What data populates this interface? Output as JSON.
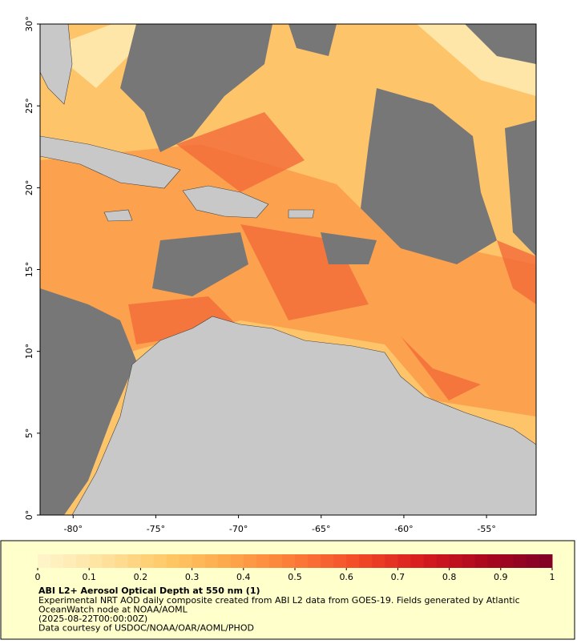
{
  "map": {
    "xlim": [
      -82,
      -52
    ],
    "ylim": [
      0,
      30
    ],
    "xticks": [
      {
        "value": -80,
        "label": "-80°"
      },
      {
        "value": -75,
        "label": "-75°"
      },
      {
        "value": -70,
        "label": "-70°"
      },
      {
        "value": -65,
        "label": "-65°"
      },
      {
        "value": -60,
        "label": "-60°"
      },
      {
        "value": -55,
        "label": "-55°"
      }
    ],
    "yticks": [
      {
        "value": 0,
        "label": "0°"
      },
      {
        "value": 5,
        "label": "5°"
      },
      {
        "value": 10,
        "label": "10°"
      },
      {
        "value": 15,
        "label": "15°"
      },
      {
        "value": 20,
        "label": "20°"
      },
      {
        "value": 25,
        "label": "25°"
      },
      {
        "value": 30,
        "label": "30°"
      }
    ]
  },
  "colorbar": {
    "range": [
      0,
      1
    ],
    "ticks": [
      0,
      0.1,
      0.2,
      0.3,
      0.4,
      0.5,
      0.6,
      0.7,
      0.8,
      0.9,
      1
    ],
    "colors": [
      "#fff5cc",
      "#fee3a0",
      "#fec966",
      "#fda64a",
      "#fc7b37",
      "#f24a28",
      "#d61a1f",
      "#a8061e",
      "#800026"
    ]
  },
  "caption": {
    "title": "ABI L2+ Aerosol Optical Depth at 550 nm (1)",
    "lines": [
      "Experimental NRT AOD daily composite created from ABI L2 data from GOES-19. Fields generated by Atlantic",
      "OceanWatch node at NOAA/AOML",
      "(2025-08-22T00:00:00Z)",
      "Data courtesy of USDOC/NOAA/OAR/AOML/PHOD"
    ]
  }
}
